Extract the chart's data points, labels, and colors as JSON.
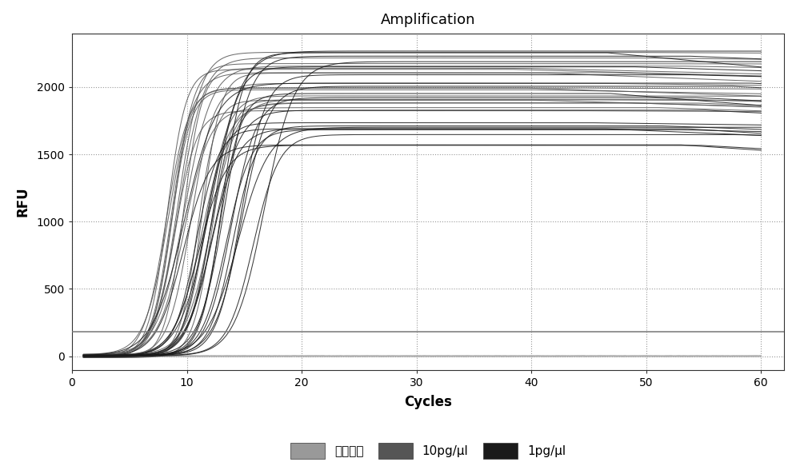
{
  "title": "Amplification",
  "xlabel": "Cycles",
  "ylabel": "RFU",
  "xlim": [
    0,
    62
  ],
  "ylim": [
    -100,
    2400
  ],
  "yticks": [
    0,
    500,
    1000,
    1500,
    2000
  ],
  "xticks": [
    0,
    10,
    20,
    30,
    40,
    50,
    60
  ],
  "threshold_y": 185,
  "threshold_color": "#777777",
  "background_color": "#ffffff",
  "grid_color": "#aaaaaa",
  "legend_labels": [
    "阴性对照",
    "10pg/μl",
    "1pg/μl"
  ],
  "legend_colors": [
    "#999999",
    "#555555",
    "#1a1a1a"
  ],
  "negative_color": "#aaaaaa",
  "pg10_color": "#555555",
  "pg1_color": "#1a1a1a",
  "n_negative": 3,
  "n_pg10": 20,
  "n_pg1": 20,
  "cycles": 60
}
